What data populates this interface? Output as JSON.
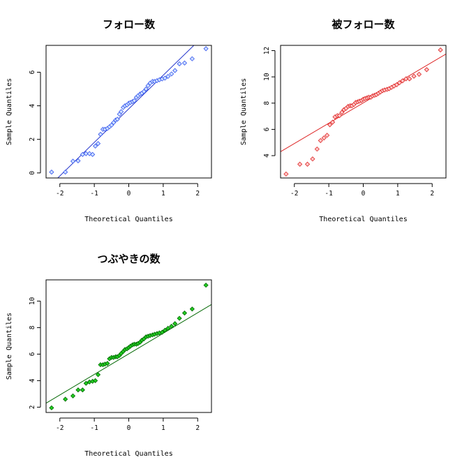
{
  "chart_data": [
    {
      "type": "scatter",
      "title": "フォロー数",
      "xlabel": "Theoretical Quantiles",
      "ylabel": "Sample Quantiles",
      "xlim": [
        -2.4,
        2.4
      ],
      "ylim": [
        -0.3,
        7.6
      ],
      "xticks": [
        -2,
        -1,
        0,
        1,
        2
      ],
      "yticks": [
        0,
        2,
        4,
        6
      ],
      "point_color": "#3355ee",
      "point_fill": "#cfe0ff",
      "line_color": "#2233cc",
      "qq_line": {
        "slope": 2.0,
        "intercept": 3.82
      },
      "series": [
        {
          "x": [
            -2.24,
            -1.84,
            -1.62,
            -1.47,
            -1.34,
            -1.24,
            -1.14,
            -1.05,
            -0.97,
            -0.89,
            -0.82,
            -0.75,
            -0.69,
            -0.62,
            -0.56,
            -0.5,
            -0.44,
            -0.38,
            -0.33,
            -0.27,
            -0.22,
            -0.16,
            -0.11,
            -0.05,
            0.0,
            0.05,
            0.11,
            0.16,
            0.22,
            0.27,
            0.33,
            0.38,
            0.44,
            0.5,
            0.56,
            0.62,
            0.69,
            0.75,
            0.82,
            0.89,
            0.97,
            1.05,
            1.14,
            1.24,
            1.34,
            1.47,
            1.62,
            1.84,
            2.24
          ],
          "y": [
            0.05,
            0.05,
            0.7,
            0.72,
            1.1,
            1.15,
            1.15,
            1.1,
            1.6,
            1.75,
            2.3,
            2.6,
            2.6,
            2.65,
            2.75,
            2.85,
            3.0,
            3.15,
            3.2,
            3.5,
            3.65,
            3.9,
            4.0,
            4.05,
            4.15,
            4.2,
            4.25,
            4.3,
            4.5,
            4.6,
            4.7,
            4.75,
            4.85,
            5.0,
            5.2,
            5.35,
            5.45,
            5.45,
            5.5,
            5.55,
            5.6,
            5.65,
            5.75,
            5.9,
            6.1,
            6.5,
            6.55,
            6.8,
            7.4
          ]
        }
      ]
    },
    {
      "type": "scatter",
      "title": "被フォロー数",
      "xlabel": "Theoretical Quantiles",
      "ylabel": "Sample Quantiles",
      "xlim": [
        -2.4,
        2.4
      ],
      "ylim": [
        2.3,
        12.4
      ],
      "xticks": [
        -2,
        -1,
        0,
        1,
        2
      ],
      "yticks": [
        4,
        6,
        8,
        10,
        12
      ],
      "point_color": "#dd2222",
      "point_fill": "#ffc8c8",
      "line_color": "#dd2222",
      "qq_line": {
        "slope": 1.55,
        "intercept": 8.02
      },
      "series": [
        {
          "x": [
            -2.24,
            -1.84,
            -1.62,
            -1.47,
            -1.34,
            -1.24,
            -1.14,
            -1.05,
            -0.97,
            -0.89,
            -0.82,
            -0.75,
            -0.69,
            -0.62,
            -0.56,
            -0.5,
            -0.44,
            -0.38,
            -0.33,
            -0.27,
            -0.22,
            -0.16,
            -0.11,
            -0.05,
            0.0,
            0.05,
            0.11,
            0.16,
            0.22,
            0.27,
            0.33,
            0.38,
            0.44,
            0.5,
            0.56,
            0.62,
            0.69,
            0.75,
            0.82,
            0.89,
            0.97,
            1.05,
            1.14,
            1.24,
            1.34,
            1.47,
            1.62,
            1.84,
            2.24
          ],
          "y": [
            2.6,
            3.35,
            3.35,
            3.75,
            4.5,
            5.15,
            5.35,
            5.55,
            6.35,
            6.55,
            6.95,
            7.05,
            7.05,
            7.3,
            7.5,
            7.6,
            7.75,
            7.8,
            7.8,
            7.9,
            8.05,
            8.1,
            8.15,
            8.2,
            8.3,
            8.35,
            8.4,
            8.45,
            8.45,
            8.55,
            8.6,
            8.65,
            8.75,
            8.85,
            8.95,
            9.0,
            9.05,
            9.1,
            9.2,
            9.3,
            9.4,
            9.55,
            9.7,
            9.85,
            9.85,
            10.05,
            10.2,
            10.55,
            12.05
          ]
        }
      ]
    },
    {
      "type": "scatter",
      "title": "つぶやきの数",
      "xlabel": "Theoretical Quantiles",
      "ylabel": "Sample Quantiles",
      "xlim": [
        -2.4,
        2.4
      ],
      "ylim": [
        1.6,
        11.6
      ],
      "xticks": [
        -2,
        -1,
        0,
        1,
        2
      ],
      "yticks": [
        2,
        4,
        6,
        8,
        10
      ],
      "point_color": "#006600",
      "point_fill": "#22cc22",
      "line_color": "#006600",
      "qq_line": {
        "slope": 1.55,
        "intercept": 6.02
      },
      "series": [
        {
          "x": [
            -2.24,
            -1.84,
            -1.62,
            -1.47,
            -1.34,
            -1.24,
            -1.14,
            -1.05,
            -0.97,
            -0.89,
            -0.82,
            -0.75,
            -0.69,
            -0.62,
            -0.56,
            -0.5,
            -0.44,
            -0.38,
            -0.33,
            -0.27,
            -0.22,
            -0.16,
            -0.11,
            -0.05,
            0.0,
            0.05,
            0.11,
            0.16,
            0.22,
            0.27,
            0.33,
            0.38,
            0.44,
            0.5,
            0.56,
            0.62,
            0.69,
            0.75,
            0.82,
            0.89,
            0.97,
            1.05,
            1.14,
            1.24,
            1.34,
            1.47,
            1.62,
            1.84,
            2.24
          ],
          "y": [
            1.95,
            2.6,
            2.85,
            3.3,
            3.3,
            3.8,
            3.9,
            3.95,
            4.0,
            4.45,
            5.2,
            5.2,
            5.25,
            5.3,
            5.65,
            5.75,
            5.75,
            5.8,
            5.8,
            5.9,
            6.05,
            6.2,
            6.35,
            6.4,
            6.5,
            6.6,
            6.7,
            6.75,
            6.75,
            6.8,
            6.9,
            7.05,
            7.15,
            7.3,
            7.35,
            7.4,
            7.45,
            7.5,
            7.55,
            7.6,
            7.65,
            7.8,
            7.95,
            8.1,
            8.3,
            8.7,
            9.1,
            9.4,
            11.2
          ]
        }
      ]
    }
  ]
}
